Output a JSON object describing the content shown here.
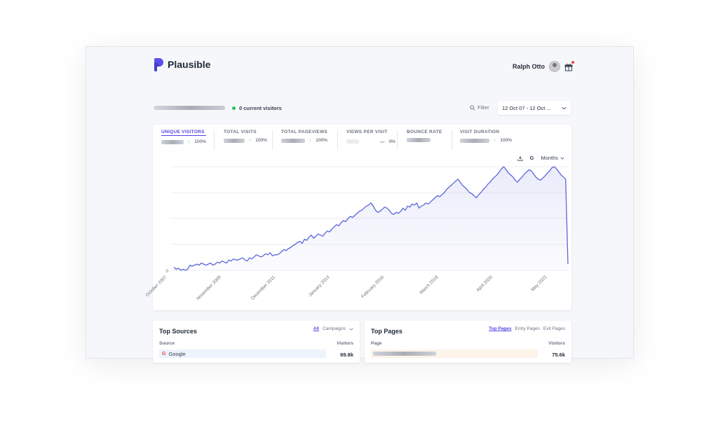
{
  "header": {
    "brand": "Plausible",
    "user_name": "Ralph Otto",
    "icons": {
      "logo": "plausible-logo-icon",
      "avatar": "user-avatar",
      "gift": "gift-icon"
    }
  },
  "toolbar": {
    "current_visitors": "0 current visitors",
    "filter_label": "Filter",
    "date_range": "12 Oct 07 - 12 Oct ...",
    "live_color": "#22c55e"
  },
  "metrics": [
    {
      "label": "UNIQUE VISITORS",
      "change": "100%",
      "trend": "up",
      "active": true
    },
    {
      "label": "TOTAL VISITS",
      "change": "100%",
      "trend": "up",
      "active": false
    },
    {
      "label": "TOTAL PAGEVIEWS",
      "change": "100%",
      "trend": "up",
      "active": false
    },
    {
      "label": "VIEWS PER VISIT",
      "change": "0%",
      "trend": "flat",
      "active": false
    },
    {
      "label": "BOUNCE RATE",
      "change": "",
      "trend": "none",
      "active": false
    },
    {
      "label": "VISIT DURATION",
      "change": "100%",
      "trend": "up",
      "active": false
    }
  ],
  "chart_controls": {
    "google_label": "G",
    "interval": "Months",
    "icons": [
      "download-icon",
      "chevron-down-icon"
    ]
  },
  "chart_data": {
    "type": "area",
    "color": "#5a67d8",
    "y_tick_zero": "0",
    "grid": true,
    "x_tick_labels": [
      "October 2007",
      "November 2009",
      "December 2011",
      "January 2014",
      "February 2016",
      "March 2018",
      "April 2020",
      "May 2022"
    ],
    "ylim": [
      0,
      100
    ],
    "values": [
      3,
      1,
      2,
      0,
      1,
      0,
      1,
      5,
      4,
      5,
      6,
      5,
      7,
      6,
      5,
      6,
      7,
      5,
      6,
      8,
      7,
      9,
      8,
      7,
      10,
      9,
      11,
      10,
      10,
      11,
      12,
      10,
      9,
      12,
      11,
      13,
      15,
      14,
      13,
      14,
      16,
      15,
      17,
      14,
      15,
      15,
      16,
      18,
      20,
      19,
      21,
      22,
      24,
      25,
      27,
      28,
      26,
      30,
      29,
      32,
      34,
      31,
      33,
      35,
      34,
      33,
      36,
      38,
      37,
      40,
      42,
      44,
      43,
      46,
      48,
      47,
      50,
      52,
      51,
      53,
      55,
      57,
      58,
      60,
      62,
      63,
      65,
      62,
      58,
      56,
      57,
      59,
      61,
      60,
      58,
      55,
      54,
      56,
      55,
      57,
      60,
      58,
      62,
      61,
      64,
      63,
      65,
      60,
      62,
      63,
      65,
      64,
      66,
      68,
      70,
      72,
      71,
      73,
      75,
      78,
      80,
      82,
      84,
      86,
      88,
      85,
      82,
      80,
      78,
      75,
      74,
      72,
      70,
      73,
      75,
      78,
      80,
      83,
      85,
      88,
      90,
      92,
      95,
      98,
      100,
      97,
      94,
      92,
      90,
      87,
      85,
      88,
      90,
      93,
      95,
      97,
      96,
      93,
      90,
      88,
      87,
      89,
      91,
      94,
      96,
      99,
      100,
      98,
      95,
      92,
      90,
      88,
      6
    ],
    "series_note": ""
  },
  "top_sources": {
    "title": "Top Sources",
    "tab_all": "All",
    "tab_campaigns": "Campaigns",
    "col_source": "Source",
    "col_visitors": "Visitors",
    "rows": [
      {
        "name": "Google",
        "visitors": "69.8k"
      }
    ]
  },
  "top_pages": {
    "title": "Top Pages",
    "tabs": [
      "Top Pages",
      "Entry Pages",
      "Exit Pages"
    ],
    "col_page": "Page",
    "col_visitors": "Visitors",
    "rows": [
      {
        "visitors": "75.6k"
      }
    ]
  }
}
